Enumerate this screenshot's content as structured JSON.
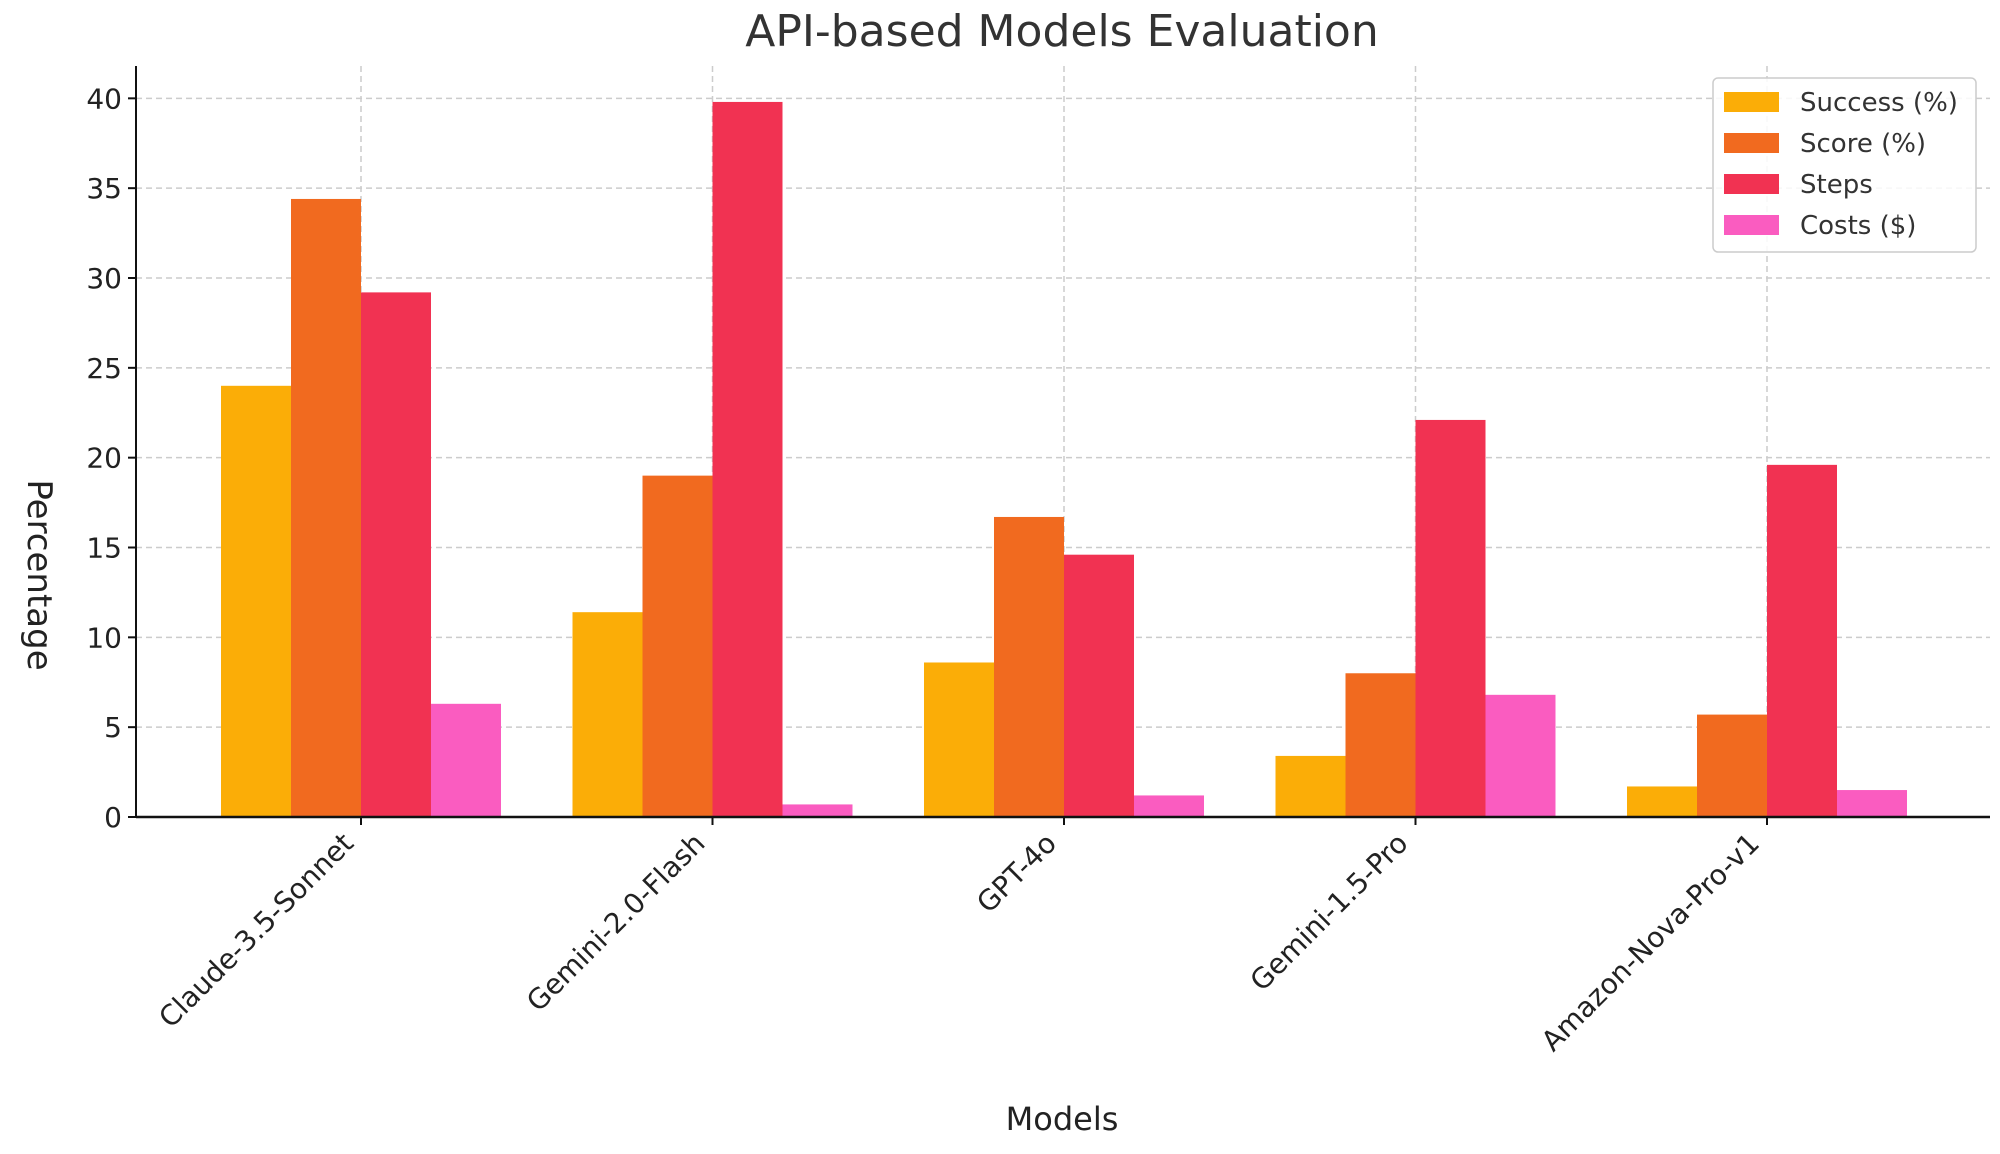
{
  "chart_data": {
    "type": "bar",
    "title": "API-based Models Evaluation",
    "xlabel": "Models",
    "ylabel": "Percentage",
    "categories": [
      "Claude-3.5-Sonnet",
      "Gemini-2.0-Flash",
      "GPT-4o",
      "Gemini-1.5-Pro",
      "Amazon-Nova-Pro-v1"
    ],
    "series": [
      {
        "name": "Success (%)",
        "color": "#FBAD07",
        "values": [
          24.0,
          11.4,
          8.6,
          3.4,
          1.7
        ]
      },
      {
        "name": "Score (%)",
        "color": "#F16A1F",
        "values": [
          34.4,
          19.0,
          16.7,
          8.0,
          5.7
        ]
      },
      {
        "name": "Steps",
        "color": "#F13252",
        "values": [
          29.2,
          39.8,
          14.6,
          22.1,
          19.6
        ]
      },
      {
        "name": "Costs ($)",
        "color": "#FA5CC0",
        "values": [
          6.3,
          0.7,
          1.2,
          6.8,
          1.5
        ]
      }
    ],
    "ylim": [
      0,
      41.8
    ],
    "yticks": [
      0,
      5,
      10,
      15,
      20,
      25,
      30,
      35,
      40
    ],
    "grid": true,
    "legend_position": "top-right"
  }
}
